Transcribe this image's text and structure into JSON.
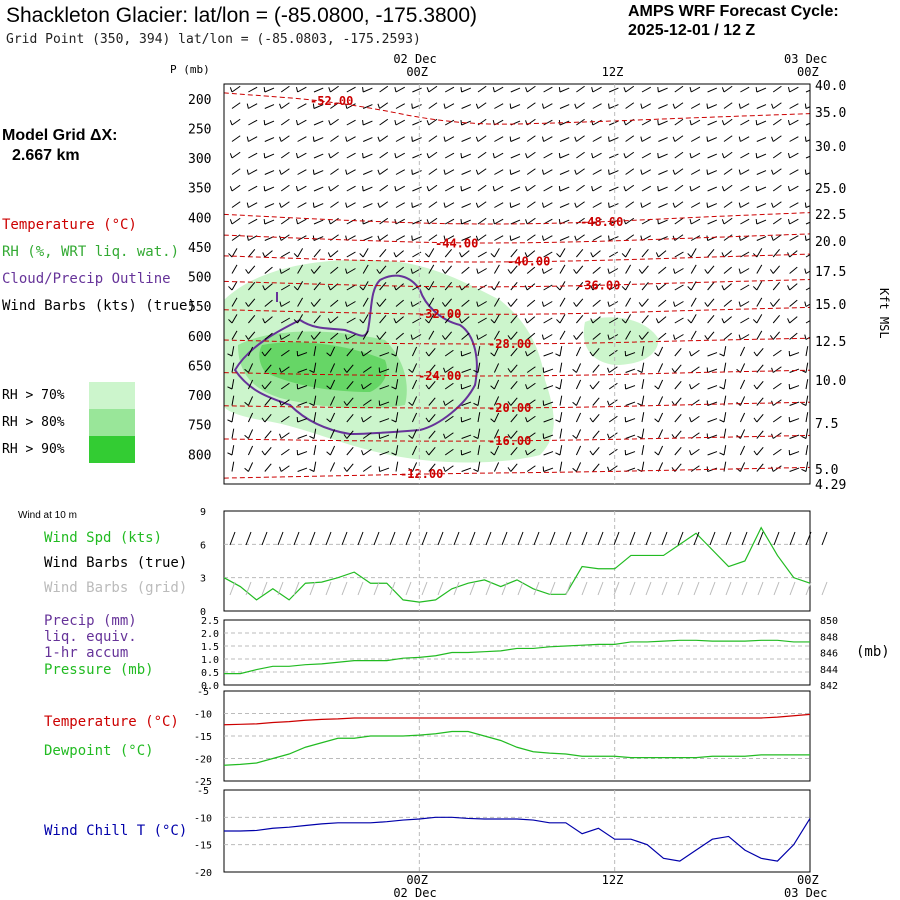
{
  "header": {
    "title": "Shackleton Glacier:  lat/lon = (-85.0800, -175.3800)",
    "grid_point": "Grid Point (350, 394) lat/lon = (-85.0803, -175.2593)",
    "forecast_label": "AMPS WRF Forecast Cycle:",
    "forecast_cycle": "2025-12-01 / 12  Z"
  },
  "sidebar": {
    "model_grid_label": "Model Grid ΔX:",
    "model_grid_value": "2.667 km",
    "legend_temp": "Temperature (°C)",
    "legend_rh": "RH (%, WRT liq. wat.)",
    "legend_cloud": "Cloud/Precip Outline",
    "legend_wind": "Wind Barbs (kts) (true)",
    "rh_levels": [
      "RH > 70%",
      "RH > 80%",
      "RH > 90%"
    ],
    "rh_colors": [
      "#ccf5cc",
      "#99e699",
      "#33cc33"
    ],
    "wind10m_label": "Wind at 10 m",
    "wind_spd": "Wind Spd (kts)",
    "wind_barbs_true": "Wind Barbs (true)",
    "wind_barbs_grid": "Wind Barbs (grid)",
    "precip_lines": [
      "Precip (mm)",
      "liq. equiv.",
      "1-hr accum"
    ],
    "pressure": "Pressure (mb)",
    "pressure_units": "(mb)",
    "temperature": "Temperature (°C)",
    "dewpoint": "Dewpoint (°C)",
    "windchill": "Wind Chill T (°C)"
  },
  "colors": {
    "temperature": "#cc0000",
    "rh": "#33aa33",
    "cloud": "#663399",
    "wind_spd": "#22bb22",
    "grid_barbs": "#bbbbbb",
    "wind_chill": "#0000aa"
  },
  "chart_data": [
    {
      "type": "heatmap",
      "name": "time-height cross section",
      "x_top_labels": [
        {
          "day": "02 Dec",
          "hour": "00Z"
        },
        {
          "day": "",
          "hour": "12Z"
        },
        {
          "day": "03 Dec",
          "hour": "00Z"
        }
      ],
      "ylabel": "P (mb)",
      "y_right_label": "Kft MSL",
      "pressure_ticks": [
        "200",
        "250",
        "300",
        "350",
        "400",
        "450",
        "500",
        "550",
        "600",
        "650",
        "700",
        "750",
        "800"
      ],
      "height_ticks": [
        "40.0",
        "35.0",
        "30.0",
        "25.0",
        "22.5",
        "20.0",
        "17.5",
        "15.0",
        "12.5",
        "10.0",
        "7.5",
        "5.0",
        "4.29"
      ],
      "temperature_contours": [
        {
          "label": "-52.00",
          "mb": [
            190,
            205,
            245,
            240,
            232,
            225
          ]
        },
        {
          "label": "-48.00",
          "mb": [
            395,
            405,
            412,
            410,
            400,
            392
          ]
        },
        {
          "label": "-44.00",
          "mb": [
            430,
            438,
            444,
            442,
            435,
            428
          ]
        },
        {
          "label": "-40.00",
          "mb": [
            465,
            472,
            476,
            474,
            468,
            462
          ]
        },
        {
          "label": "-36.00",
          "mb": [
            508,
            514,
            518,
            516,
            510,
            505
          ]
        },
        {
          "label": "-32.00",
          "mb": [
            556,
            561,
            564,
            563,
            557,
            552
          ]
        },
        {
          "label": "-28.00",
          "mb": [
            607,
            612,
            614,
            613,
            608,
            604
          ]
        },
        {
          "label": "-24.00",
          "mb": [
            662,
            666,
            668,
            667,
            662,
            658
          ]
        },
        {
          "label": "-20.00",
          "mb": [
            718,
            721,
            722,
            721,
            716,
            712
          ]
        },
        {
          "label": "-16.00",
          "mb": [
            774,
            777,
            778,
            776,
            772,
            768
          ]
        },
        {
          "label": "-12.00",
          "mb": [
            840,
            836,
            832,
            830,
            826,
            822
          ]
        }
      ]
    },
    {
      "type": "line",
      "name": "wind speed at 10 m",
      "ylim": [
        0,
        9
      ],
      "yticks": [
        "0",
        "3",
        "6",
        "9"
      ],
      "x_hours": [
        0,
        1,
        2,
        3,
        4,
        5,
        6,
        7,
        8,
        9,
        10,
        11,
        12,
        13,
        14,
        15,
        16,
        17,
        18,
        19,
        20,
        21,
        22,
        23,
        24,
        25,
        26,
        27,
        28,
        29,
        30,
        31,
        32,
        33,
        34,
        35,
        36
      ],
      "series": [
        {
          "values": [
            3,
            2.2,
            1,
            2,
            1,
            2.5,
            2.6,
            3,
            3.5,
            2.5,
            2.5,
            1,
            0.8,
            1,
            2,
            2.5,
            2.8,
            2.2,
            2.8,
            2,
            1.5,
            1.5,
            4,
            3.8,
            3.8,
            5,
            5,
            5,
            6,
            7,
            5.5,
            4,
            4.5,
            7.5,
            5,
            3,
            2.5
          ]
        }
      ]
    },
    {
      "type": "line",
      "name": "precip and pressure",
      "ylim_left": [
        0,
        2.5
      ],
      "yticks_left": [
        "0.0",
        "0.5",
        "1.0",
        "1.5",
        "2.0",
        "2.5"
      ],
      "ylim_right": [
        842,
        850
      ],
      "yticks_right": [
        "842",
        "844",
        "846",
        "848",
        "850"
      ],
      "x_hours": [
        0,
        1,
        2,
        3,
        4,
        5,
        6,
        7,
        8,
        9,
        10,
        11,
        12,
        13,
        14,
        15,
        16,
        17,
        18,
        19,
        20,
        21,
        22,
        23,
        24,
        25,
        26,
        27,
        28,
        29,
        30,
        31,
        32,
        33,
        34,
        35,
        36
      ],
      "series": [
        {
          "values": [
            843.4,
            843.4,
            843.9,
            844.3,
            844.3,
            844.5,
            844.6,
            844.8,
            845.0,
            845.0,
            845.0,
            845.3,
            845.4,
            845.6,
            846.0,
            846.0,
            846.1,
            846.2,
            846.5,
            846.5,
            846.7,
            846.8,
            846.9,
            847.0,
            847.0,
            847.3,
            847.3,
            847.4,
            847.5,
            847.5,
            847.4,
            847.4,
            847.4,
            847.5,
            847.5,
            847.3,
            847.3
          ]
        }
      ]
    },
    {
      "type": "line",
      "name": "temperature and dewpoint",
      "ylim": [
        -25,
        -5
      ],
      "yticks": [
        "-25",
        "-20",
        "-15",
        "-10",
        "-5"
      ],
      "x_hours": [
        0,
        1,
        2,
        3,
        4,
        5,
        6,
        7,
        8,
        9,
        10,
        11,
        12,
        13,
        14,
        15,
        16,
        17,
        18,
        19,
        20,
        21,
        22,
        23,
        24,
        25,
        26,
        27,
        28,
        29,
        30,
        31,
        32,
        33,
        34,
        35,
        36
      ],
      "series": [
        {
          "values": [
            -12.5,
            -12.4,
            -12.3,
            -12.0,
            -11.8,
            -11.5,
            -11.3,
            -11.2,
            -11.0,
            -11.0,
            -11.0,
            -11.0,
            -11.0,
            -11.0,
            -11.0,
            -11.0,
            -11.0,
            -11.0,
            -11.0,
            -11.0,
            -11.0,
            -11.0,
            -11.0,
            -11.0,
            -11.0,
            -11.0,
            -11.0,
            -11.0,
            -11.0,
            -11.0,
            -11.0,
            -11.0,
            -11.0,
            -11.0,
            -10.8,
            -10.5,
            -10.2
          ]
        },
        {
          "values": [
            -21.5,
            -21.3,
            -21.0,
            -20.0,
            -19.0,
            -17.5,
            -16.5,
            -15.5,
            -15.5,
            -15.0,
            -15.0,
            -15.0,
            -14.8,
            -14.5,
            -14.0,
            -14.0,
            -15.0,
            -16.0,
            -17.5,
            -18.5,
            -18.8,
            -19.0,
            -19.5,
            -19.5,
            -19.5,
            -19.8,
            -19.8,
            -19.8,
            -19.8,
            -19.8,
            -19.5,
            -19.5,
            -19.5,
            -19.2,
            -19.2,
            -19.2,
            -19.2
          ]
        }
      ]
    },
    {
      "type": "line",
      "name": "wind chill",
      "ylim": [
        -20,
        -5
      ],
      "yticks": [
        "-20",
        "-15",
        "-10",
        "-5"
      ],
      "x_hours": [
        0,
        1,
        2,
        3,
        4,
        5,
        6,
        7,
        8,
        9,
        10,
        11,
        12,
        13,
        14,
        15,
        16,
        17,
        18,
        19,
        20,
        21,
        22,
        23,
        24,
        25,
        26,
        27,
        28,
        29,
        30,
        31,
        32,
        33,
        34,
        35,
        36
      ],
      "series": [
        {
          "values": [
            -12.5,
            -12.5,
            -12.4,
            -12.0,
            -11.8,
            -11.5,
            -11.2,
            -11.0,
            -11.0,
            -11.0,
            -10.8,
            -10.5,
            -10.3,
            -10.0,
            -10.0,
            -10.2,
            -10.3,
            -10.3,
            -10.3,
            -10.5,
            -11.0,
            -11.0,
            -13.0,
            -12.0,
            -14.0,
            -14.0,
            -15.0,
            -17.5,
            -18.0,
            -16.0,
            -14.0,
            -13.5,
            -16.0,
            -17.5,
            -18.0,
            -15.0,
            -10.2
          ]
        }
      ]
    }
  ],
  "x_bottom_labels": [
    {
      "hour": "00Z",
      "day": "02 Dec"
    },
    {
      "hour": "12Z",
      "day": ""
    },
    {
      "hour": "00Z",
      "day": "03 Dec"
    }
  ]
}
